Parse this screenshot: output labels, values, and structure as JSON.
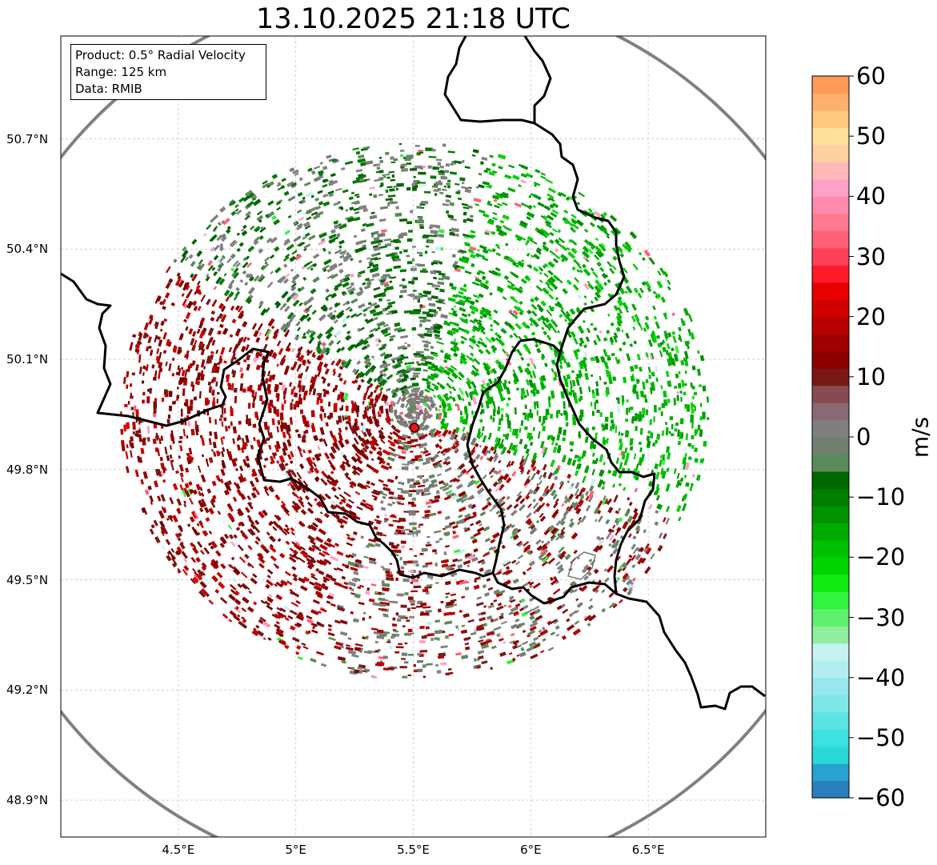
{
  "title": "13.10.2025 21:18 UTC",
  "info_box": {
    "product": "Product: 0.5° Radial Velocity",
    "range": "Range: 125 km",
    "data": "Data: RMIB"
  },
  "axes": {
    "lat_labels": [
      "50.7°N",
      "50.4°N",
      "50.1°N",
      "49.8°N",
      "49.5°N",
      "49.2°N",
      "48.9°N"
    ],
    "lat_values": [
      50.7,
      50.4,
      50.1,
      49.8,
      49.5,
      49.2,
      48.9
    ],
    "lon_labels": [
      "4.5°E",
      "5°E",
      "5.5°E",
      "6°E",
      "6.5°E"
    ],
    "lon_values": [
      4.5,
      5.0,
      5.5,
      6.0,
      6.5
    ],
    "lon_range": [
      4.0,
      7.0
    ],
    "lat_range": [
      48.8,
      50.98
    ]
  },
  "radar_site": {
    "lon": 5.505,
    "lat": 49.914,
    "name": "radar-site"
  },
  "colorbar": {
    "label": "m/s",
    "ticks": [
      "60",
      "50",
      "40",
      "30",
      "20",
      "10",
      "0",
      "−10",
      "−20",
      "−30",
      "−40",
      "−50",
      "−60"
    ],
    "tick_values": [
      60,
      50,
      40,
      30,
      20,
      10,
      0,
      -10,
      -20,
      -30,
      -40,
      -50,
      -60
    ],
    "range": [
      -60,
      60
    ],
    "colors": [
      "#2a7fbf",
      "#26a3cf",
      "#2ad8d8",
      "#3ee0e0",
      "#5ce4e4",
      "#7ee8e8",
      "#96e8ec",
      "#b2eef0",
      "#c6f2f2",
      "#90eea0",
      "#60f070",
      "#34f240",
      "#10ec10",
      "#00d400",
      "#00c000",
      "#00aa00",
      "#009400",
      "#007e00",
      "#006600",
      "#5a8a5a",
      "#708070",
      "#7f7f7f",
      "#8a6a72",
      "#884a52",
      "#7a1818",
      "#8a0000",
      "#a00000",
      "#b80000",
      "#d00000",
      "#e80000",
      "#ff1a2a",
      "#ff4058",
      "#ff6078",
      "#ff7a90",
      "#ff8ab0",
      "#ffa0c8",
      "#ffb8b8",
      "#ffd0a0",
      "#ffe09a",
      "#ffc880",
      "#ffb070",
      "#ff9a58"
    ]
  }
}
